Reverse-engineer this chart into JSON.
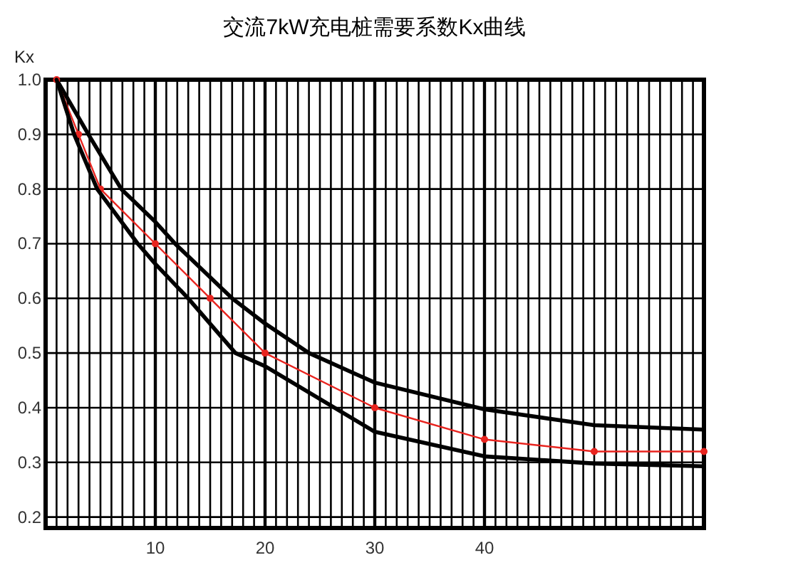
{
  "chart_data": {
    "type": "line",
    "title": "交流7kW充电桩需要系数Kx曲线",
    "ylabel": "Kx",
    "xlim": [
      0,
      60
    ],
    "ylim": [
      0.18,
      1.0
    ],
    "xticks": [
      {
        "value": 1,
        "label": null
      },
      {
        "value": 2,
        "label": null
      },
      {
        "value": 3,
        "label": null
      },
      {
        "value": 4,
        "label": null
      },
      {
        "value": 5,
        "label": null
      },
      {
        "value": 6,
        "label": null
      },
      {
        "value": 7,
        "label": null
      },
      {
        "value": 8,
        "label": null
      },
      {
        "value": 9,
        "label": null
      },
      10,
      {
        "value": 11,
        "label": null
      },
      {
        "value": 12,
        "label": null
      },
      {
        "value": 13,
        "label": null
      },
      {
        "value": 14,
        "label": null
      },
      {
        "value": 15,
        "label": null
      },
      {
        "value": 16,
        "label": null
      },
      {
        "value": 17,
        "label": null
      },
      {
        "value": 18,
        "label": null
      },
      {
        "value": 19,
        "label": null
      },
      20,
      {
        "value": 21,
        "label": null
      },
      {
        "value": 22,
        "label": null
      },
      {
        "value": 23,
        "label": null
      },
      {
        "value": 24,
        "label": null
      },
      {
        "value": 25,
        "label": null
      },
      {
        "value": 26,
        "label": null
      },
      {
        "value": 27,
        "label": null
      },
      {
        "value": 28,
        "label": null
      },
      {
        "value": 29,
        "label": null
      },
      30,
      {
        "value": 31,
        "label": null
      },
      {
        "value": 32,
        "label": null
      },
      {
        "value": 33,
        "label": null
      },
      {
        "value": 34,
        "label": null
      },
      {
        "value": 35,
        "label": null
      },
      {
        "value": 36,
        "label": null
      },
      {
        "value": 37,
        "label": null
      },
      {
        "value": 38,
        "label": null
      },
      {
        "value": 39,
        "label": null
      },
      40,
      {
        "value": 41,
        "label": null
      },
      {
        "value": 42,
        "label": null
      },
      {
        "value": 43,
        "label": null
      },
      {
        "value": 44,
        "label": null
      },
      {
        "value": 45,
        "label": null
      },
      {
        "value": 46,
        "label": null
      },
      {
        "value": 47,
        "label": null
      },
      {
        "value": 48,
        "label": null
      },
      {
        "value": 49,
        "label": null
      },
      {
        "value": 50,
        "label": null
      },
      {
        "value": 51,
        "label": null
      },
      {
        "value": 52,
        "label": null
      },
      {
        "value": 53,
        "label": null
      },
      {
        "value": 54,
        "label": null
      },
      {
        "value": 55,
        "label": null
      },
      {
        "value": 56,
        "label": null
      },
      {
        "value": 57,
        "label": null
      },
      {
        "value": 58,
        "label": null
      },
      {
        "value": 59,
        "label": null
      }
    ],
    "yticks": [
      0.2,
      0.3,
      0.4,
      0.5,
      0.6,
      0.7,
      0.8,
      0.9,
      {
        "value": 1.0,
        "label": "1.0"
      }
    ],
    "grid": true,
    "series": [
      {
        "color": "#000000",
        "x": [
          1,
          3.9,
          6.9,
          10,
          11.8,
          17,
          20,
          24,
          30,
          40,
          50,
          60
        ],
        "values": [
          1.0,
          0.9,
          0.8,
          0.74,
          0.7,
          0.6,
          0.554,
          0.5,
          0.446,
          0.397,
          0.368,
          0.36
        ]
      },
      {
        "color": "#e8241f",
        "marker": "circle",
        "x": [
          1,
          3,
          5,
          10,
          15,
          20,
          30,
          40,
          50,
          60
        ],
        "values": [
          1.0,
          0.9,
          0.8,
          0.7,
          0.6,
          0.5,
          0.4,
          0.342,
          0.32,
          0.32
        ]
      },
      {
        "color": "#000000",
        "x": [
          1,
          2.6,
          4.7,
          8.4,
          10,
          13,
          17.3,
          20,
          30,
          40,
          50,
          60
        ],
        "values": [
          1.0,
          0.9,
          0.8,
          0.7,
          0.663,
          0.6,
          0.5,
          0.476,
          0.356,
          0.311,
          0.298,
          0.293
        ]
      }
    ]
  }
}
